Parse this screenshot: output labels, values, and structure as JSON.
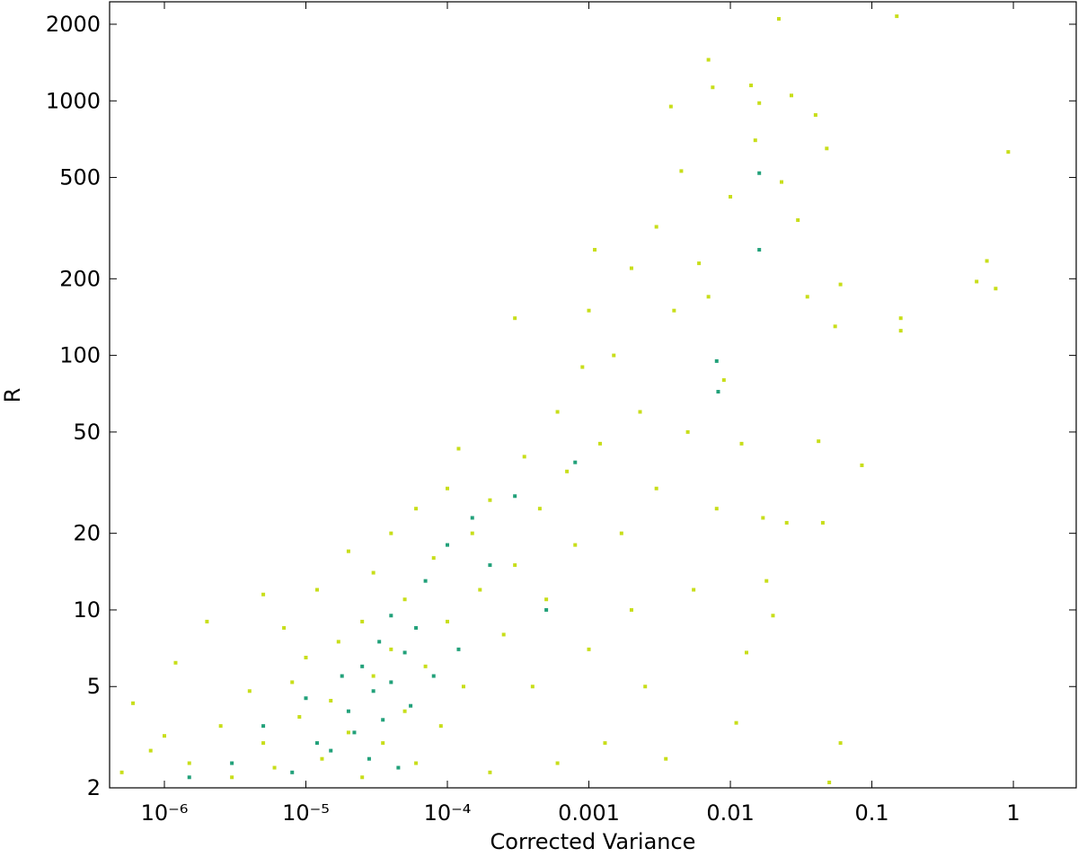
{
  "chart_data": {
    "type": "scatter",
    "x_label": "Corrected Variance",
    "y_label": "R",
    "xscale": "log",
    "yscale": "log",
    "grid": false,
    "xlim": [
      4.1e-07,
      2.78
    ],
    "ylim": [
      2,
      2450
    ],
    "xticks": [
      {
        "value": 1e-06,
        "label": "10⁻⁶"
      },
      {
        "value": 1e-05,
        "label": "10⁻⁵"
      },
      {
        "value": 0.0001,
        "label": "10⁻⁴"
      },
      0.001,
      0.01,
      0.1,
      1
    ],
    "yticks": [
      2,
      5,
      10,
      20,
      50,
      100,
      200,
      500,
      1000,
      2000
    ],
    "series": [
      {
        "color": "#c8de1a",
        "x": [
          5e-07,
          6e-07,
          8e-07,
          1e-06,
          1.2e-06,
          1.5e-06,
          2e-06,
          2.5e-06,
          3e-06,
          4e-06,
          5e-06,
          5e-06,
          6e-06,
          7e-06,
          8e-06,
          9e-06,
          1e-05,
          1.2e-05,
          1.3e-05,
          1.5e-05,
          1.7e-05,
          2e-05,
          2e-05,
          2.5e-05,
          2.5e-05,
          3e-05,
          3e-05,
          3.5e-05,
          4e-05,
          4e-05,
          5e-05,
          5e-05,
          6e-05,
          6e-05,
          7e-05,
          8e-05,
          9e-05,
          0.0001,
          0.0001,
          0.00012,
          0.00013,
          0.00015,
          0.00017,
          0.0002,
          0.0002,
          0.00025,
          0.0003,
          0.0003,
          0.00035,
          0.0004,
          0.00045,
          0.0005,
          0.0006,
          0.0006,
          0.0007,
          0.0008,
          0.0009,
          0.001,
          0.001,
          0.0011,
          0.0012,
          0.0013,
          0.0015,
          0.0017,
          0.002,
          0.002,
          0.0023,
          0.0025,
          0.003,
          0.003,
          0.0035,
          0.0038,
          0.004,
          0.0045,
          0.005,
          0.0055,
          0.006,
          0.007,
          0.007,
          0.0075,
          0.008,
          0.009,
          0.01,
          0.011,
          0.012,
          0.013,
          0.014,
          0.015,
          0.016,
          0.017,
          0.018,
          0.02,
          0.022,
          0.023,
          0.025,
          0.027,
          0.03,
          0.035,
          0.04,
          0.042,
          0.045,
          0.048,
          0.05,
          0.055,
          0.06,
          0.06,
          0.085,
          0.15,
          0.16,
          0.16,
          0.55,
          0.65,
          0.75,
          0.92
        ],
        "values": [
          2.3,
          4.3,
          2.8,
          3.2,
          6.2,
          2.5,
          9,
          3.5,
          2.2,
          4.8,
          11.5,
          3,
          2.4,
          8.5,
          5.2,
          3.8,
          6.5,
          12,
          2.6,
          4.4,
          7.5,
          17,
          3.3,
          9,
          2.2,
          5.5,
          14,
          3,
          20,
          7,
          4,
          11,
          25,
          2.5,
          6,
          16,
          3.5,
          30,
          9,
          43,
          5,
          20,
          12,
          27,
          2.3,
          8,
          140,
          15,
          40,
          5,
          25,
          11,
          60,
          2.5,
          35,
          18,
          90,
          150,
          7,
          260,
          45,
          3,
          100,
          20,
          220,
          10,
          60,
          5,
          320,
          30,
          2.6,
          950,
          150,
          530,
          50,
          12,
          230,
          1450,
          170,
          1130,
          25,
          80,
          420,
          3.6,
          45,
          6.8,
          1150,
          700,
          980,
          23,
          13,
          9.5,
          2100,
          480,
          22,
          1050,
          340,
          170,
          880,
          46,
          22,
          650,
          2.1,
          130,
          3,
          190,
          37,
          2150,
          140,
          125,
          195,
          235,
          183,
          630
        ]
      },
      {
        "color": "#22a17a",
        "x": [
          1.5e-06,
          3e-06,
          5e-06,
          8e-06,
          1e-05,
          1.2e-05,
          1.5e-05,
          1.8e-05,
          2e-05,
          2.2e-05,
          2.5e-05,
          2.8e-05,
          3e-05,
          3.3e-05,
          3.5e-05,
          4e-05,
          4e-05,
          4.5e-05,
          5e-05,
          5.5e-05,
          6e-05,
          7e-05,
          8e-05,
          0.0001,
          0.00012,
          0.00015,
          0.0002,
          0.0003,
          0.0005,
          0.0008,
          0.008,
          0.0082,
          0.016,
          0.016
        ],
        "values": [
          2.2,
          2.5,
          3.5,
          2.3,
          4.5,
          3,
          2.8,
          5.5,
          4,
          3.3,
          6,
          2.6,
          4.8,
          7.5,
          3.7,
          5.2,
          9.5,
          2.4,
          6.8,
          4.2,
          8.5,
          13,
          5.5,
          18,
          7,
          23,
          15,
          28,
          10,
          38,
          95,
          72,
          260,
          520
        ]
      }
    ]
  }
}
